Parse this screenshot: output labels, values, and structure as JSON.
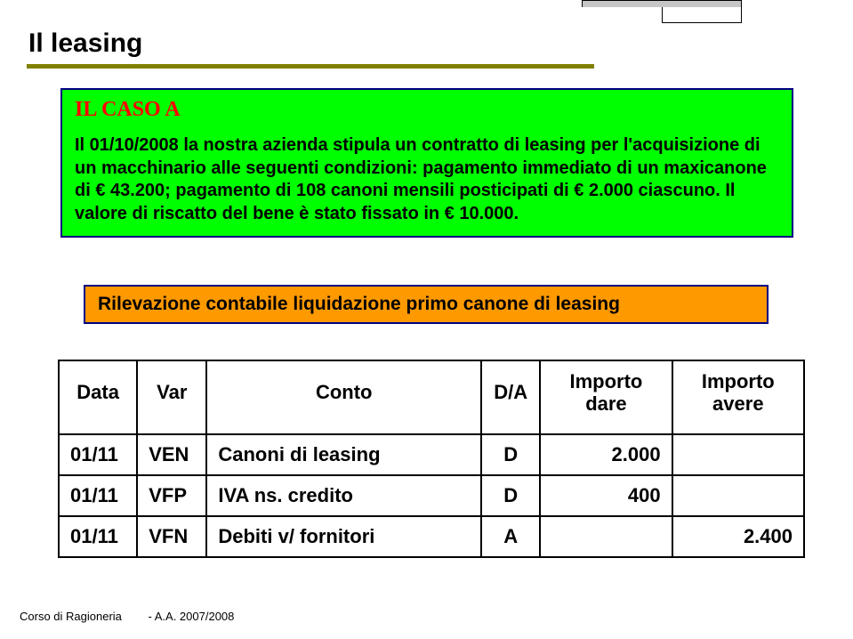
{
  "colors": {
    "title_underline": "#808000",
    "case_bg": "#00ff00",
    "case_border": "#000080",
    "case_title": "#ff0000",
    "orange_bg": "#ff9900",
    "table_border": "#000000"
  },
  "title": "Il leasing",
  "case": {
    "heading": "IL CASO A",
    "body": "Il 01/10/2008 la nostra azienda stipula un contratto di leasing per l'acquisizione di un macchinario alle seguenti condizioni: pagamento immediato di un maxicanone di € 43.200; pagamento di 108 canoni mensili posticipati di € 2.000 ciascuno. Il valore di riscatto del bene è stato fissato in € 10.000."
  },
  "orange_label": "Rilevazione contabile liquidazione primo canone di leasing",
  "table": {
    "headers": {
      "data": "Data",
      "var": "Var",
      "conto": "Conto",
      "da": "D/A",
      "dare_line1": "Importo",
      "dare_line2": "dare",
      "avere_line1": "Importo",
      "avere_line2": "avere"
    },
    "rows": [
      {
        "data": "01/11",
        "var": "VEN",
        "conto": "Canoni di leasing",
        "da": "D",
        "dare": "2.000",
        "avere": ""
      },
      {
        "data": "01/11",
        "var": "VFP",
        "conto": "IVA ns. credito",
        "da": "D",
        "dare": "400",
        "avere": ""
      },
      {
        "data": "01/11",
        "var": "VFN",
        "conto": "Debiti v/ fornitori",
        "da": "A",
        "dare": "",
        "avere": "2.400"
      }
    ]
  },
  "footer": {
    "left": "Corso di Ragioneria",
    "right": "- A.A. 2007/2008"
  }
}
